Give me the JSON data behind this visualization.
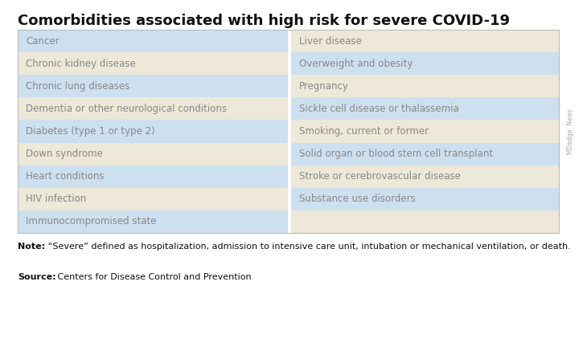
{
  "title": "Comorbidities associated with high risk for severe COVID-19",
  "left_col": [
    "Cancer",
    "Chronic kidney disease",
    "Chronic lung diseases",
    "Dementia or other neurological conditions",
    "Diabetes (type 1 or type 2)",
    "Down syndrome",
    "Heart conditions",
    "HIV infection",
    "Immunocompromised state"
  ],
  "right_col": [
    "Liver disease",
    "Overweight and obesity",
    "Pregnancy",
    "Sickle cell disease or thalassemia",
    "Smoking, current or former",
    "Solid organ or blood stem cell transplant",
    "Stroke or cerebrovascular disease",
    "Substance use disorders",
    ""
  ],
  "note_bold": "Note:",
  "note_text": " “Severe” defined as hospitalization, admission to intensive care unit, intubation or mechanical ventilation, or death.",
  "source_bold": "Source:",
  "source_text": " Centers for Disease Control and Prevention",
  "watermark": "MDedge  News",
  "color_blue": "#cde0f0",
  "color_beige": "#ede8d8",
  "color_text": "#888888",
  "color_title": "#111111",
  "color_note": "#111111",
  "bg_color": "#ffffff",
  "border_color": "#bbbbbb"
}
